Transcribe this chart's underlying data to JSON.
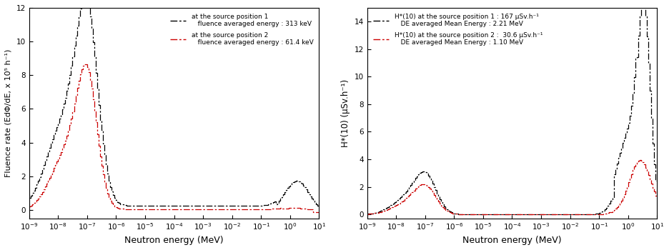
{
  "left_xlabel": "Neutron energy (MeV)",
  "left_ylabel": "Fluence rate (EdΦ/dE, x 10⁵ h⁻¹)",
  "left_ylim": [
    -0.5,
    12
  ],
  "left_yticks": [
    0,
    2,
    4,
    6,
    8,
    10,
    12
  ],
  "right_xlabel": "Neutron energy (MeV)",
  "right_ylabel": "H*(10) (μSv.h⁻¹)",
  "right_ylim": [
    -0.3,
    15
  ],
  "right_yticks": [
    0,
    2,
    4,
    6,
    8,
    10,
    12,
    14
  ],
  "xlim_low": 1e-09,
  "xlim_high": 10,
  "legend1_l1": "at the source position 1",
  "legend1_l2": "   fluence averaged energy : 313 keV",
  "legend1_l3": "at the source position 2",
  "legend1_l4": "   fluence averaged energy : 61.4 keV",
  "legend2_l1": "H*(10) at the source position 1 : 167 μSv.h⁻¹",
  "legend2_l2": "   DE averaged Mean Energy : 2.21 MeV",
  "legend2_l3": "H*(10) at the source position 2 :  30.6 μSv.h⁻¹",
  "legend2_l4": "   DE averaged Mean Energy : 1.10 MeV",
  "color_black": "#000000",
  "color_red": "#cc0000",
  "background": "#ffffff"
}
